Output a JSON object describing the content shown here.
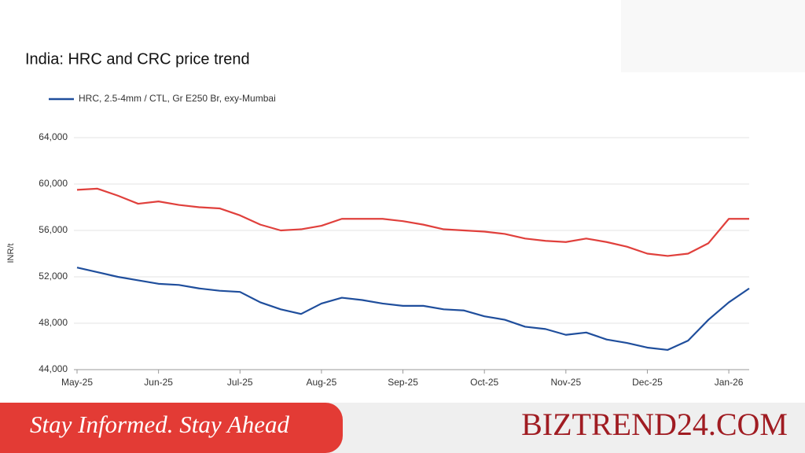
{
  "chart_data": {
    "type": "line",
    "title": "India: HRC and CRC price trend",
    "y_label": "INR/t",
    "categories": [
      "May-25",
      null,
      null,
      null,
      "Jun-25",
      null,
      null,
      null,
      "Jul-25",
      null,
      null,
      null,
      "Aug-25",
      null,
      null,
      null,
      "Sep-25",
      null,
      null,
      null,
      "Oct-25",
      null,
      null,
      null,
      "Nov-25",
      null,
      null,
      null,
      "Dec-25",
      null,
      null,
      null,
      "Jan-26",
      null
    ],
    "series": [
      {
        "name": "HRC, 2.5-4mm / CTL, Gr E250 Br, exy-Mumbai",
        "color": "#1f4e9c",
        "values": [
          52800,
          52400,
          52000,
          51700,
          51400,
          51300,
          51000,
          50800,
          50700,
          49800,
          49200,
          48800,
          49700,
          50200,
          50000,
          49700,
          49500,
          49500,
          49200,
          49100,
          48600,
          48300,
          47700,
          47500,
          47000,
          47200,
          46600,
          46300,
          45900,
          45700,
          46500,
          48300,
          49800,
          51000
        ]
      },
      {
        "color": "#e0403c",
        "values": [
          59500,
          59600,
          59000,
          58300,
          58500,
          58200,
          58000,
          57900,
          57300,
          56500,
          56000,
          56100,
          56400,
          57000,
          57000,
          57000,
          56800,
          56500,
          56100,
          56000,
          55900,
          55700,
          55300,
          55100,
          55000,
          55300,
          55000,
          54600,
          54000,
          53800,
          54000,
          54900,
          57000,
          57000
        ]
      }
    ],
    "ylim": [
      44000,
      64000
    ],
    "yticks": [
      {
        "value": 44000,
        "label": "44,000"
      },
      {
        "value": 48000,
        "label": "48,000"
      },
      {
        "value": 52000,
        "label": "52,000"
      },
      {
        "value": 56000,
        "label": "56,000"
      },
      {
        "value": 60000,
        "label": "60,000"
      },
      {
        "value": 64000,
        "label": "64,000"
      }
    ],
    "grid": true
  },
  "banner": {
    "tagline": "Stay Informed. Stay Ahead",
    "brand": "BIZTREND24.COM"
  }
}
